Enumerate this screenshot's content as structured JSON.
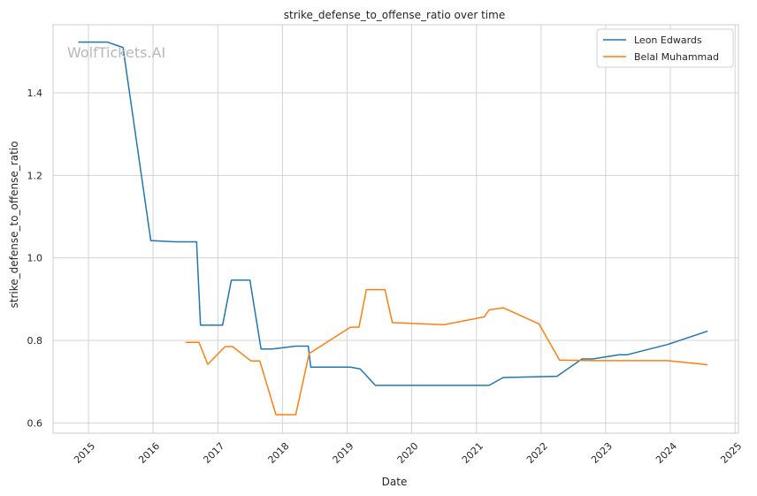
{
  "chart_data": {
    "type": "line",
    "title": "strike_defense_to_offense_ratio over time",
    "xlabel": "Date",
    "ylabel": "strike_defense_to_offense_ratio",
    "watermark": "WolfTickets.AI",
    "legend_position": "top-right",
    "grid": true,
    "xlim": [
      "2014-06-15",
      "2025-01-20"
    ],
    "ylim": [
      0.575,
      1.565
    ],
    "x_ticks": [
      "2015",
      "2016",
      "2017",
      "2018",
      "2019",
      "2020",
      "2021",
      "2022",
      "2023",
      "2024",
      "2025"
    ],
    "y_ticks": [
      "0.6",
      "0.8",
      "1.0",
      "1.2",
      "1.4"
    ],
    "series": [
      {
        "name": "Leon Edwards",
        "color": "#1f77b4",
        "x": [
          "2014-11-08",
          "2015-04-18",
          "2015-07-15",
          "2015-12-19",
          "2016-05-08",
          "2016-09-03",
          "2016-09-25",
          "2017-01-28",
          "2017-03-18",
          "2017-07-01",
          "2017-09-02",
          "2017-11-04",
          "2018-03-17",
          "2018-05-27",
          "2018-06-10",
          "2019-01-19",
          "2019-03-16",
          "2019-06-10",
          "2019-07-20",
          "2021-03-13",
          "2021-06-01",
          "2022-04-01",
          "2022-08-20",
          "2022-10-20",
          "2023-03-18",
          "2023-05-01",
          "2023-12-16",
          "2024-07-27"
        ],
        "y": [
          1.523,
          1.523,
          1.51,
          1.042,
          1.039,
          1.039,
          0.837,
          0.837,
          0.946,
          0.946,
          0.779,
          0.779,
          0.786,
          0.786,
          0.735,
          0.735,
          0.731,
          0.691,
          0.691,
          0.691,
          0.71,
          0.713,
          0.755,
          0.755,
          0.765,
          0.765,
          0.79,
          0.822
        ]
      },
      {
        "name": "Belal Muhammad",
        "color": "#ff7f0e",
        "x": [
          "2016-07-07",
          "2016-09-17",
          "2016-11-05",
          "2017-02-11",
          "2017-03-25",
          "2017-07-08",
          "2017-08-26",
          "2017-11-25",
          "2018-03-17",
          "2018-06-01",
          "2019-01-19",
          "2019-03-09",
          "2019-04-20",
          "2019-08-03",
          "2019-09-14",
          "2020-07-01",
          "2021-02-14",
          "2021-03-13",
          "2021-06-01",
          "2021-12-20",
          "2022-04-16",
          "2022-10-22",
          "2023-05-06",
          "2023-12-16",
          "2024-07-27"
        ],
        "y": [
          0.795,
          0.795,
          0.742,
          0.785,
          0.785,
          0.75,
          0.75,
          0.62,
          0.62,
          0.768,
          0.832,
          0.832,
          0.923,
          0.923,
          0.843,
          0.838,
          0.857,
          0.874,
          0.879,
          0.84,
          0.752,
          0.751,
          0.751,
          0.751,
          0.741
        ]
      }
    ]
  }
}
